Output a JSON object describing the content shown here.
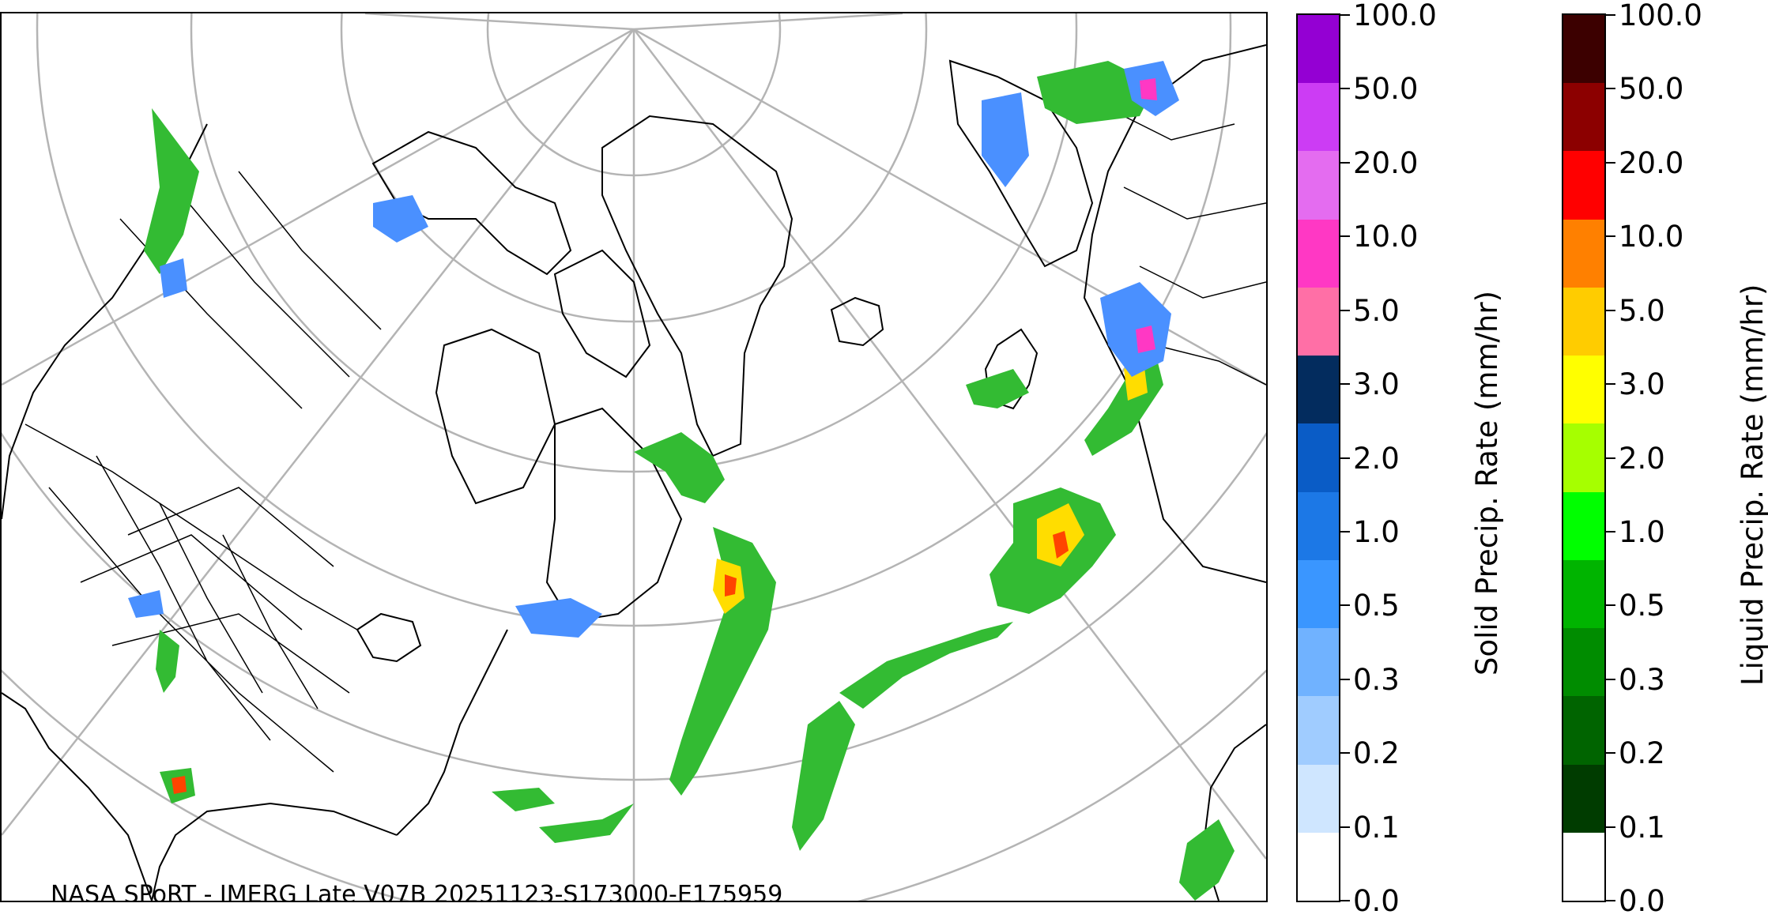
{
  "credit": "NASA SPoRT - IMERG Late V07B 20251123-S173000-E175959",
  "colorbars": {
    "solid": {
      "label": "Solid Precip. Rate (mm/hr)",
      "ticks": [
        "0.0",
        "0.1",
        "0.2",
        "0.3",
        "0.5",
        "1.0",
        "2.0",
        "3.0",
        "5.0",
        "10.0",
        "20.0",
        "50.0",
        "100.0"
      ],
      "colors": [
        "#ffffff",
        "#cfe6ff",
        "#a0ccff",
        "#70b2ff",
        "#3a96ff",
        "#1c78e6",
        "#0a5cc6",
        "#032c5e",
        "#ff6fa6",
        "#ff38c4",
        "#e46cf0",
        "#cc3cf4",
        "#9400d3"
      ]
    },
    "liquid": {
      "label": "Liquid Precip. Rate (mm/hr)",
      "ticks": [
        "0.0",
        "0.1",
        "0.2",
        "0.3",
        "0.5",
        "1.0",
        "2.0",
        "3.0",
        "5.0",
        "10.0",
        "20.0",
        "50.0",
        "100.0"
      ],
      "colors": [
        "#ffffff",
        "#003c00",
        "#006400",
        "#008c00",
        "#00b400",
        "#00ff00",
        "#a6ff00",
        "#ffff00",
        "#ffcc00",
        "#ff8000",
        "#ff0000",
        "#8c0000",
        "#3c0000"
      ]
    }
  },
  "colors": {
    "graticule": "#b4b4b4",
    "coastline": "#000000",
    "rain": "#33bb33",
    "rain_heavy": "#ffdd00",
    "rain_core": "#ff4400",
    "snow": "#4a90ff"
  }
}
